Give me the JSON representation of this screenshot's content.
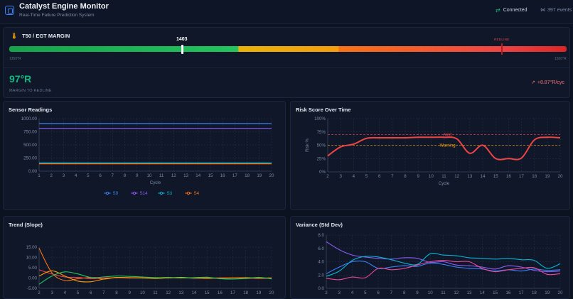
{
  "header": {
    "title": "Catalyst Engine Monitor",
    "subtitle": "Real-Time Failure Prediction System",
    "connection_status": "Connected",
    "events": "397 events"
  },
  "egt": {
    "title": "T50 / EGT MARGIN",
    "current_value": "1403",
    "redline_label": "REDLINE",
    "min_label": "1350°R",
    "max_label": "1500°R",
    "margin_value": "97°R",
    "margin_label": "MARGIN TO REDLINE",
    "rate": "+8.87°R/cyc"
  },
  "charts": {
    "sensor": {
      "title": "Sensor Readings",
      "xlabel": "Cycle",
      "y_ticks": [
        "0.00",
        "250.00",
        "500.00",
        "750.00",
        "1000.00"
      ],
      "x_ticks": [
        "1",
        "2",
        "3",
        "4",
        "5",
        "6",
        "7",
        "8",
        "9",
        "10",
        "11",
        "12",
        "13",
        "14",
        "15",
        "16",
        "17",
        "18",
        "19",
        "20"
      ],
      "legend": [
        "S9",
        "S14",
        "S3",
        "S4"
      ]
    },
    "risk": {
      "title": "Risk Score Over Time",
      "xlabel": "Cycle",
      "ylabel": "Risk %",
      "y_ticks": [
        "0%",
        "25%",
        "50%",
        "75%",
        "100%"
      ],
      "x_ticks": [
        "2",
        "3",
        "4",
        "5",
        "6",
        "7",
        "8",
        "9",
        "10",
        "11",
        "12",
        "13",
        "14",
        "15",
        "16",
        "17",
        "18",
        "19",
        "20"
      ],
      "alert_label": "Alert",
      "warning_label": "Warning"
    },
    "trend": {
      "title": "Trend (Slope)",
      "y_ticks": [
        "-5.00",
        "0.00",
        "5.00",
        "10.00",
        "15.00"
      ],
      "x_ticks": [
        "2",
        "3",
        "4",
        "5",
        "6",
        "7",
        "8",
        "9",
        "10",
        "11",
        "12",
        "13",
        "14",
        "15",
        "16",
        "17",
        "18",
        "19",
        "20"
      ]
    },
    "variance": {
      "title": "Variance (Std Dev)",
      "y_ticks": [
        "0.0",
        "2.0",
        "4.0",
        "6.0",
        "8.0"
      ],
      "x_ticks": [
        "2",
        "3",
        "4",
        "5",
        "6",
        "7",
        "8",
        "9",
        "10",
        "11",
        "12",
        "13",
        "14",
        "15",
        "16",
        "17",
        "18",
        "19",
        "20"
      ]
    }
  },
  "colors": {
    "s9": "#3b82f6",
    "s14": "#8b5cf6",
    "s3": "#06b6d4",
    "s4": "#f97316",
    "green": "#22c55e",
    "risk": "#ef4444",
    "warning": "#f59e0b",
    "accent_good": "#10b981"
  },
  "chart_data": [
    {
      "type": "line",
      "title": "Sensor Readings",
      "xlabel": "Cycle",
      "ylabel": "",
      "x": [
        1,
        2,
        3,
        4,
        5,
        6,
        7,
        8,
        9,
        10,
        11,
        12,
        13,
        14,
        15,
        16,
        17,
        18,
        19,
        20
      ],
      "ylim": [
        0,
        1000
      ],
      "series": [
        {
          "name": "S9",
          "values": [
            905,
            905,
            905,
            905,
            905,
            905,
            905,
            905,
            905,
            905,
            905,
            905,
            905,
            905,
            905,
            905,
            905,
            905,
            905,
            905
          ]
        },
        {
          "name": "S14",
          "values": [
            815,
            815,
            815,
            815,
            815,
            815,
            815,
            815,
            815,
            815,
            815,
            815,
            815,
            815,
            815,
            815,
            815,
            815,
            815,
            815
          ]
        },
        {
          "name": "S3",
          "values": [
            158,
            158,
            158,
            158,
            158,
            158,
            158,
            158,
            158,
            158,
            158,
            158,
            158,
            158,
            158,
            158,
            158,
            158,
            158,
            158
          ]
        },
        {
          "name": "S4",
          "values": [
            140,
            140,
            140,
            140,
            140,
            140,
            140,
            140,
            140,
            140,
            140,
            140,
            140,
            140,
            140,
            140,
            140,
            140,
            140,
            140
          ]
        }
      ]
    },
    {
      "type": "line",
      "title": "Risk Score Over Time",
      "xlabel": "Cycle",
      "ylabel": "Risk %",
      "x": [
        2,
        3,
        4,
        5,
        6,
        7,
        8,
        9,
        10,
        11,
        12,
        13,
        14,
        15,
        16,
        17,
        18,
        19,
        20
      ],
      "ylim": [
        0,
        100
      ],
      "thresholds": [
        {
          "label": "Alert",
          "value": 70
        },
        {
          "label": "Warning",
          "value": 50
        }
      ],
      "series": [
        {
          "name": "",
          "values": [
            30,
            47,
            52,
            63,
            64,
            64,
            64,
            65,
            65,
            65,
            62,
            35,
            50,
            25,
            25,
            26,
            60,
            65,
            64
          ]
        }
      ]
    },
    {
      "type": "line",
      "title": "Trend (Slope)",
      "xlabel": "",
      "ylabel": "",
      "x": [
        2,
        3,
        4,
        5,
        6,
        7,
        8,
        9,
        10,
        11,
        12,
        13,
        14,
        15,
        16,
        17,
        18,
        19,
        20
      ],
      "ylim": [
        -5,
        15
      ],
      "series": [
        {
          "name": "",
          "values": [
            14.5,
            2.5,
            -1.2,
            -0.3,
            0.2,
            -0.5,
            0.3,
            0.0,
            0.1,
            0.0,
            0.2,
            0.1,
            0.0,
            -0.2,
            0.0,
            0.1,
            -0.2,
            0.0,
            0.1
          ]
        },
        {
          "name": "",
          "values": [
            4.0,
            2.0,
            0.5,
            0.3,
            -0.3,
            0.0,
            0.2,
            0.1,
            0.0,
            0.1,
            0.0,
            0.2,
            -0.1,
            0.0,
            0.1,
            0.0,
            0.0,
            -0.2,
            0.0
          ]
        },
        {
          "name": "",
          "values": [
            1.0,
            3.5,
            1.0,
            -1.5,
            -1.8,
            -0.5,
            0.3,
            0.2,
            0.0,
            -0.2,
            0.1,
            0.3,
            0.0,
            0.1,
            -0.1,
            0.0,
            0.2,
            0.0,
            -0.1
          ]
        },
        {
          "name": "",
          "values": [
            -3.0,
            1.0,
            3.0,
            2.0,
            0.3,
            0.5,
            1.0,
            0.8,
            0.5,
            0.2,
            0.3,
            0.0,
            0.2,
            0.4,
            -0.3,
            -0.5,
            -0.2,
            0.3,
            -0.4
          ]
        }
      ]
    },
    {
      "type": "line",
      "title": "Variance (Std Dev)",
      "xlabel": "",
      "ylabel": "",
      "x": [
        2,
        3,
        4,
        5,
        6,
        7,
        8,
        9,
        10,
        11,
        12,
        13,
        14,
        15,
        16,
        17,
        18,
        19,
        20
      ],
      "ylim": [
        0,
        8
      ],
      "series": [
        {
          "name": "",
          "values": [
            7.0,
            5.8,
            5.0,
            4.7,
            4.5,
            4.4,
            4.6,
            4.5,
            3.9,
            4.0,
            3.5,
            3.4,
            3.2,
            2.9,
            3.4,
            3.2,
            2.7,
            2.5,
            2.6
          ]
        },
        {
          "name": "",
          "values": [
            1.8,
            2.6,
            4.2,
            4.8,
            4.7,
            4.3,
            3.8,
            3.6,
            5.2,
            5.0,
            4.9,
            4.6,
            4.5,
            4.4,
            4.5,
            4.3,
            4.2,
            3.0,
            3.7
          ]
        },
        {
          "name": "",
          "values": [
            2.2,
            3.2,
            4.0,
            4.0,
            3.0,
            3.2,
            3.4,
            3.3,
            3.8,
            3.6,
            3.2,
            3.0,
            2.9,
            2.6,
            2.8,
            2.6,
            2.9,
            2.7,
            2.8
          ]
        },
        {
          "name": "",
          "values": [
            1.5,
            1.3,
            1.7,
            1.6,
            3.0,
            2.8,
            3.0,
            3.5,
            4.0,
            4.2,
            4.0,
            4.0,
            3.0,
            2.5,
            2.8,
            3.0,
            3.1,
            2.1,
            2.2
          ]
        }
      ]
    }
  ]
}
